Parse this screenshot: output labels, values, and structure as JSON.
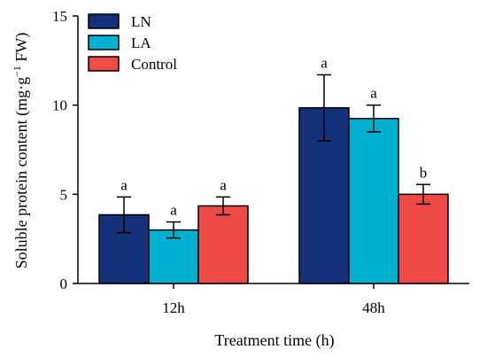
{
  "chart_data": {
    "type": "bar",
    "title": "",
    "xlabel": "Treatment time (h)",
    "ylabel_parts": {
      "main": "Soluble protein content (mg·g",
      "sup": "−1",
      "tail": " FW)"
    },
    "categories": [
      "12h",
      "48h"
    ],
    "ylim": [
      0,
      15
    ],
    "yticks": [
      "0",
      "5",
      "10",
      "15"
    ],
    "legend_position": "top-left",
    "grid": false,
    "series": [
      {
        "name": "LN",
        "color": "#14317a",
        "values": [
          3.85,
          9.85
        ],
        "errors": [
          1.0,
          1.85
        ],
        "letters": [
          "a",
          "a"
        ]
      },
      {
        "name": "LA",
        "color": "#00b0d0",
        "values": [
          3.0,
          9.25
        ],
        "errors": [
          0.45,
          0.75
        ],
        "letters": [
          "a",
          "a"
        ]
      },
      {
        "name": "Control",
        "color": "#f04a46",
        "values": [
          4.35,
          5.0
        ],
        "errors": [
          0.5,
          0.55
        ],
        "letters": [
          "a",
          "b"
        ]
      }
    ]
  }
}
